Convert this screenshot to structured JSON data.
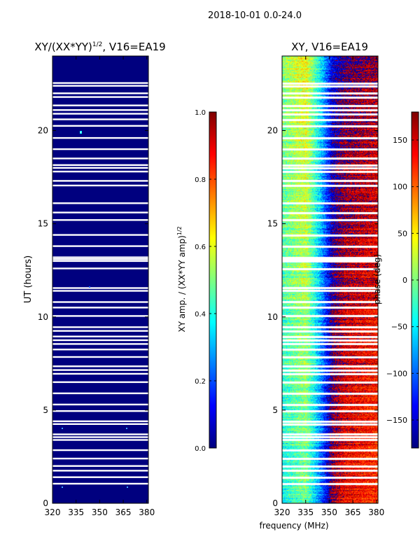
{
  "figure_title": "2018-10-01 0.0-24.0",
  "colors": {
    "jet": [
      "#00007f",
      "#0000ff",
      "#007fff",
      "#00ffff",
      "#7fff7f",
      "#ffff00",
      "#ff7f00",
      "#ff0000",
      "#7f0000"
    ],
    "gap": "#ffffff",
    "axis": "#000000"
  },
  "chart_data": [
    {
      "type": "heatmap",
      "title": "XY/(XX*YY)^(1/2), V16=EA19",
      "title_main": "XY/(XX*YY)",
      "title_exp": "1/2",
      "title_tail": ", V16=EA19",
      "xlabel": "",
      "ylabel": "UT (hours)",
      "xlim": [
        320,
        381
      ],
      "ylim": [
        0,
        24
      ],
      "xticks": [
        320,
        335,
        350,
        365,
        380
      ],
      "yticks": [
        0,
        5,
        10,
        15,
        20
      ],
      "value_range": [
        0.0,
        1.0
      ],
      "baseline_value": 0.02,
      "description": "near-zero amplitude everywhere, a few isolated bright pixels",
      "colorbar": {
        "label": "XY amp. / (XX*YY amp)^(1/2)",
        "label_main": "XY amp. / (XX*YY amp)",
        "label_exp": "1/2",
        "ticks": [
          "0.0",
          "0.2",
          "0.4",
          "0.6",
          "0.8",
          "1.0"
        ],
        "tick_values": [
          0.0,
          0.2,
          0.4,
          0.6,
          0.8,
          1.0
        ]
      }
    },
    {
      "type": "heatmap",
      "title": "XY, V16=EA19",
      "xlabel": "frequency (MHz)",
      "ylabel": "",
      "xlim": [
        320,
        381
      ],
      "ylim": [
        0,
        24
      ],
      "xticks": [
        320,
        335,
        350,
        365,
        380
      ],
      "yticks": [
        0,
        5,
        10,
        15,
        20
      ],
      "value_range": [
        -180,
        180
      ],
      "phase_trend_deg": [
        {
          "freq": 320,
          "phase": -20
        },
        {
          "freq": 335,
          "phase": 20
        },
        {
          "freq": 345,
          "phase": -80
        },
        {
          "freq": 352,
          "phase": -170
        },
        {
          "freq": 360,
          "phase": 160
        },
        {
          "freq": 381,
          "phase": 140
        }
      ],
      "colorbar": {
        "label": "phase (deg)",
        "ticks": [
          "−150",
          "−100",
          "−50",
          "0",
          "50",
          "100",
          "150"
        ],
        "tick_values": [
          -150,
          -100,
          -50,
          0,
          50,
          100,
          150
        ]
      }
    }
  ],
  "flagged_hours": [
    1.05,
    1.4,
    1.75,
    2.0,
    2.4,
    2.85,
    3.4,
    3.55,
    3.7,
    4.25,
    4.4,
    4.95,
    5.3,
    5.9,
    6.5,
    6.95,
    7.15,
    7.35,
    7.85,
    8.25,
    8.55,
    8.75,
    8.95,
    9.25,
    9.45,
    10.05,
    10.5,
    10.8,
    11.4,
    11.55,
    12.6,
    13.0,
    13.1,
    13.2,
    13.8,
    14.4,
    15.2,
    15.6,
    16.1,
    17.05,
    17.3,
    17.8,
    18.0,
    18.15,
    18.5,
    19.0,
    19.6,
    20.25,
    20.6,
    20.9,
    21.1,
    21.35,
    21.8,
    22.0,
    22.4,
    22.55
  ]
}
